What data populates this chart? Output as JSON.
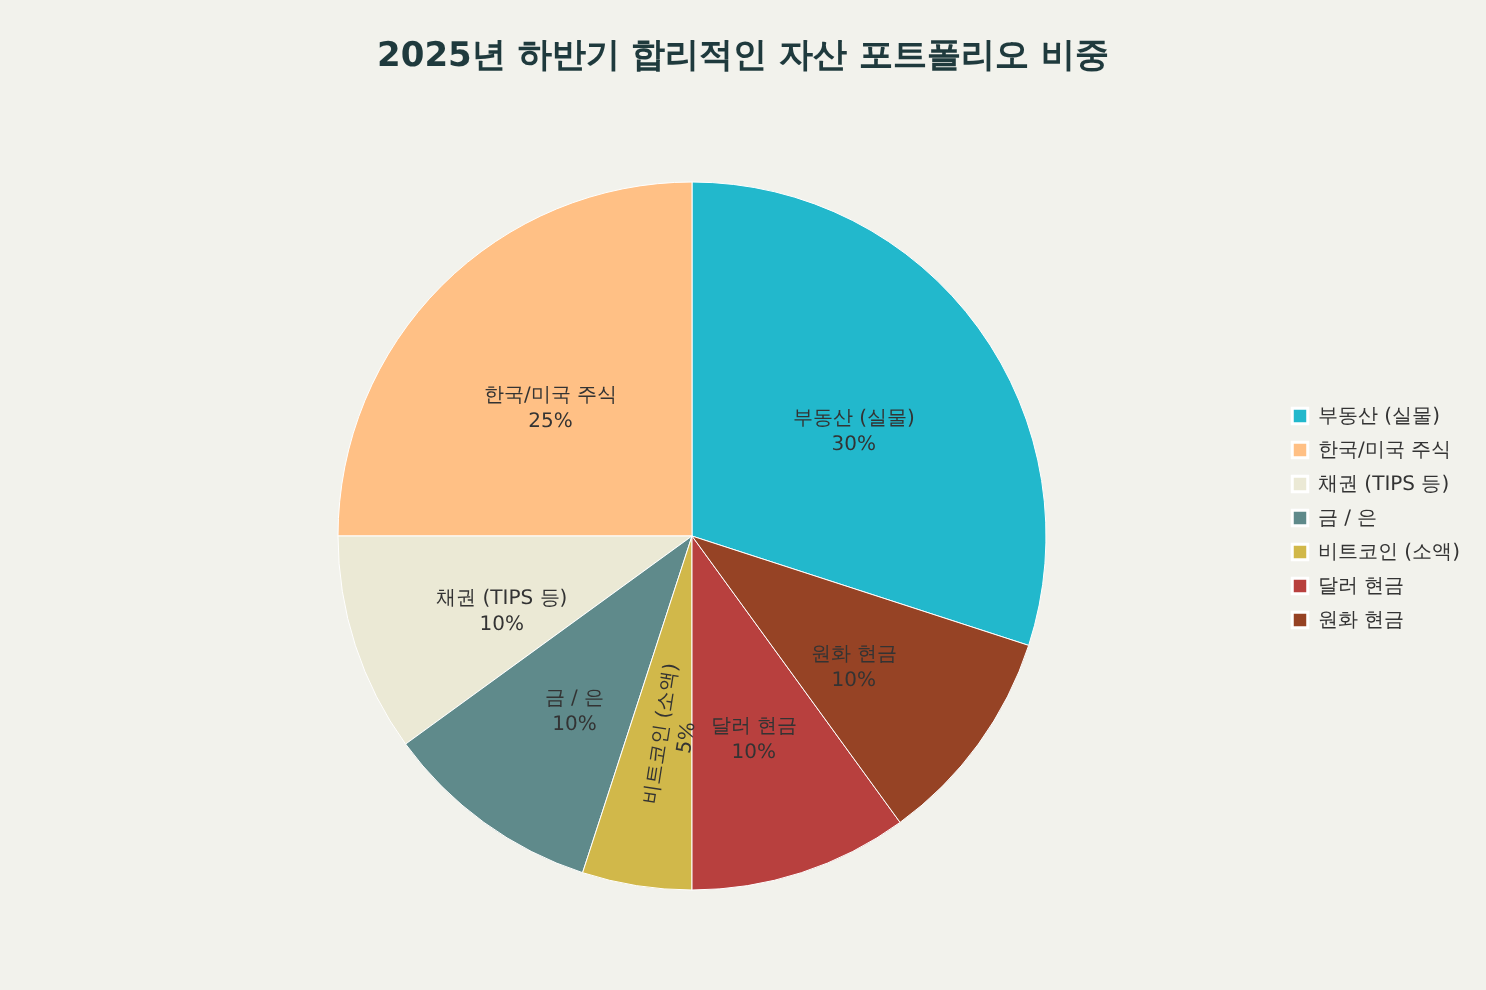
{
  "chart_data": {
    "type": "pie",
    "title": "2025년 하반기 합리적인 자산 포트폴리오 비중",
    "categories": [
      "부동산 (실물)",
      "한국/미국 주식",
      "채권 (TIPS 등)",
      "금 / 은",
      "비트코인 (소액)",
      "달러 현금",
      "원화 현금"
    ],
    "values": [
      30,
      25,
      10,
      10,
      5,
      10,
      10
    ],
    "value_labels": [
      "30%",
      "25%",
      "10%",
      "10%",
      "5%",
      "10%",
      "10%"
    ],
    "colors": [
      "#22b8cc",
      "#ffc085",
      "#ebe9d5",
      "#5f8a8b",
      "#d1b84a",
      "#b8403e",
      "#964325"
    ],
    "legend": "right"
  }
}
